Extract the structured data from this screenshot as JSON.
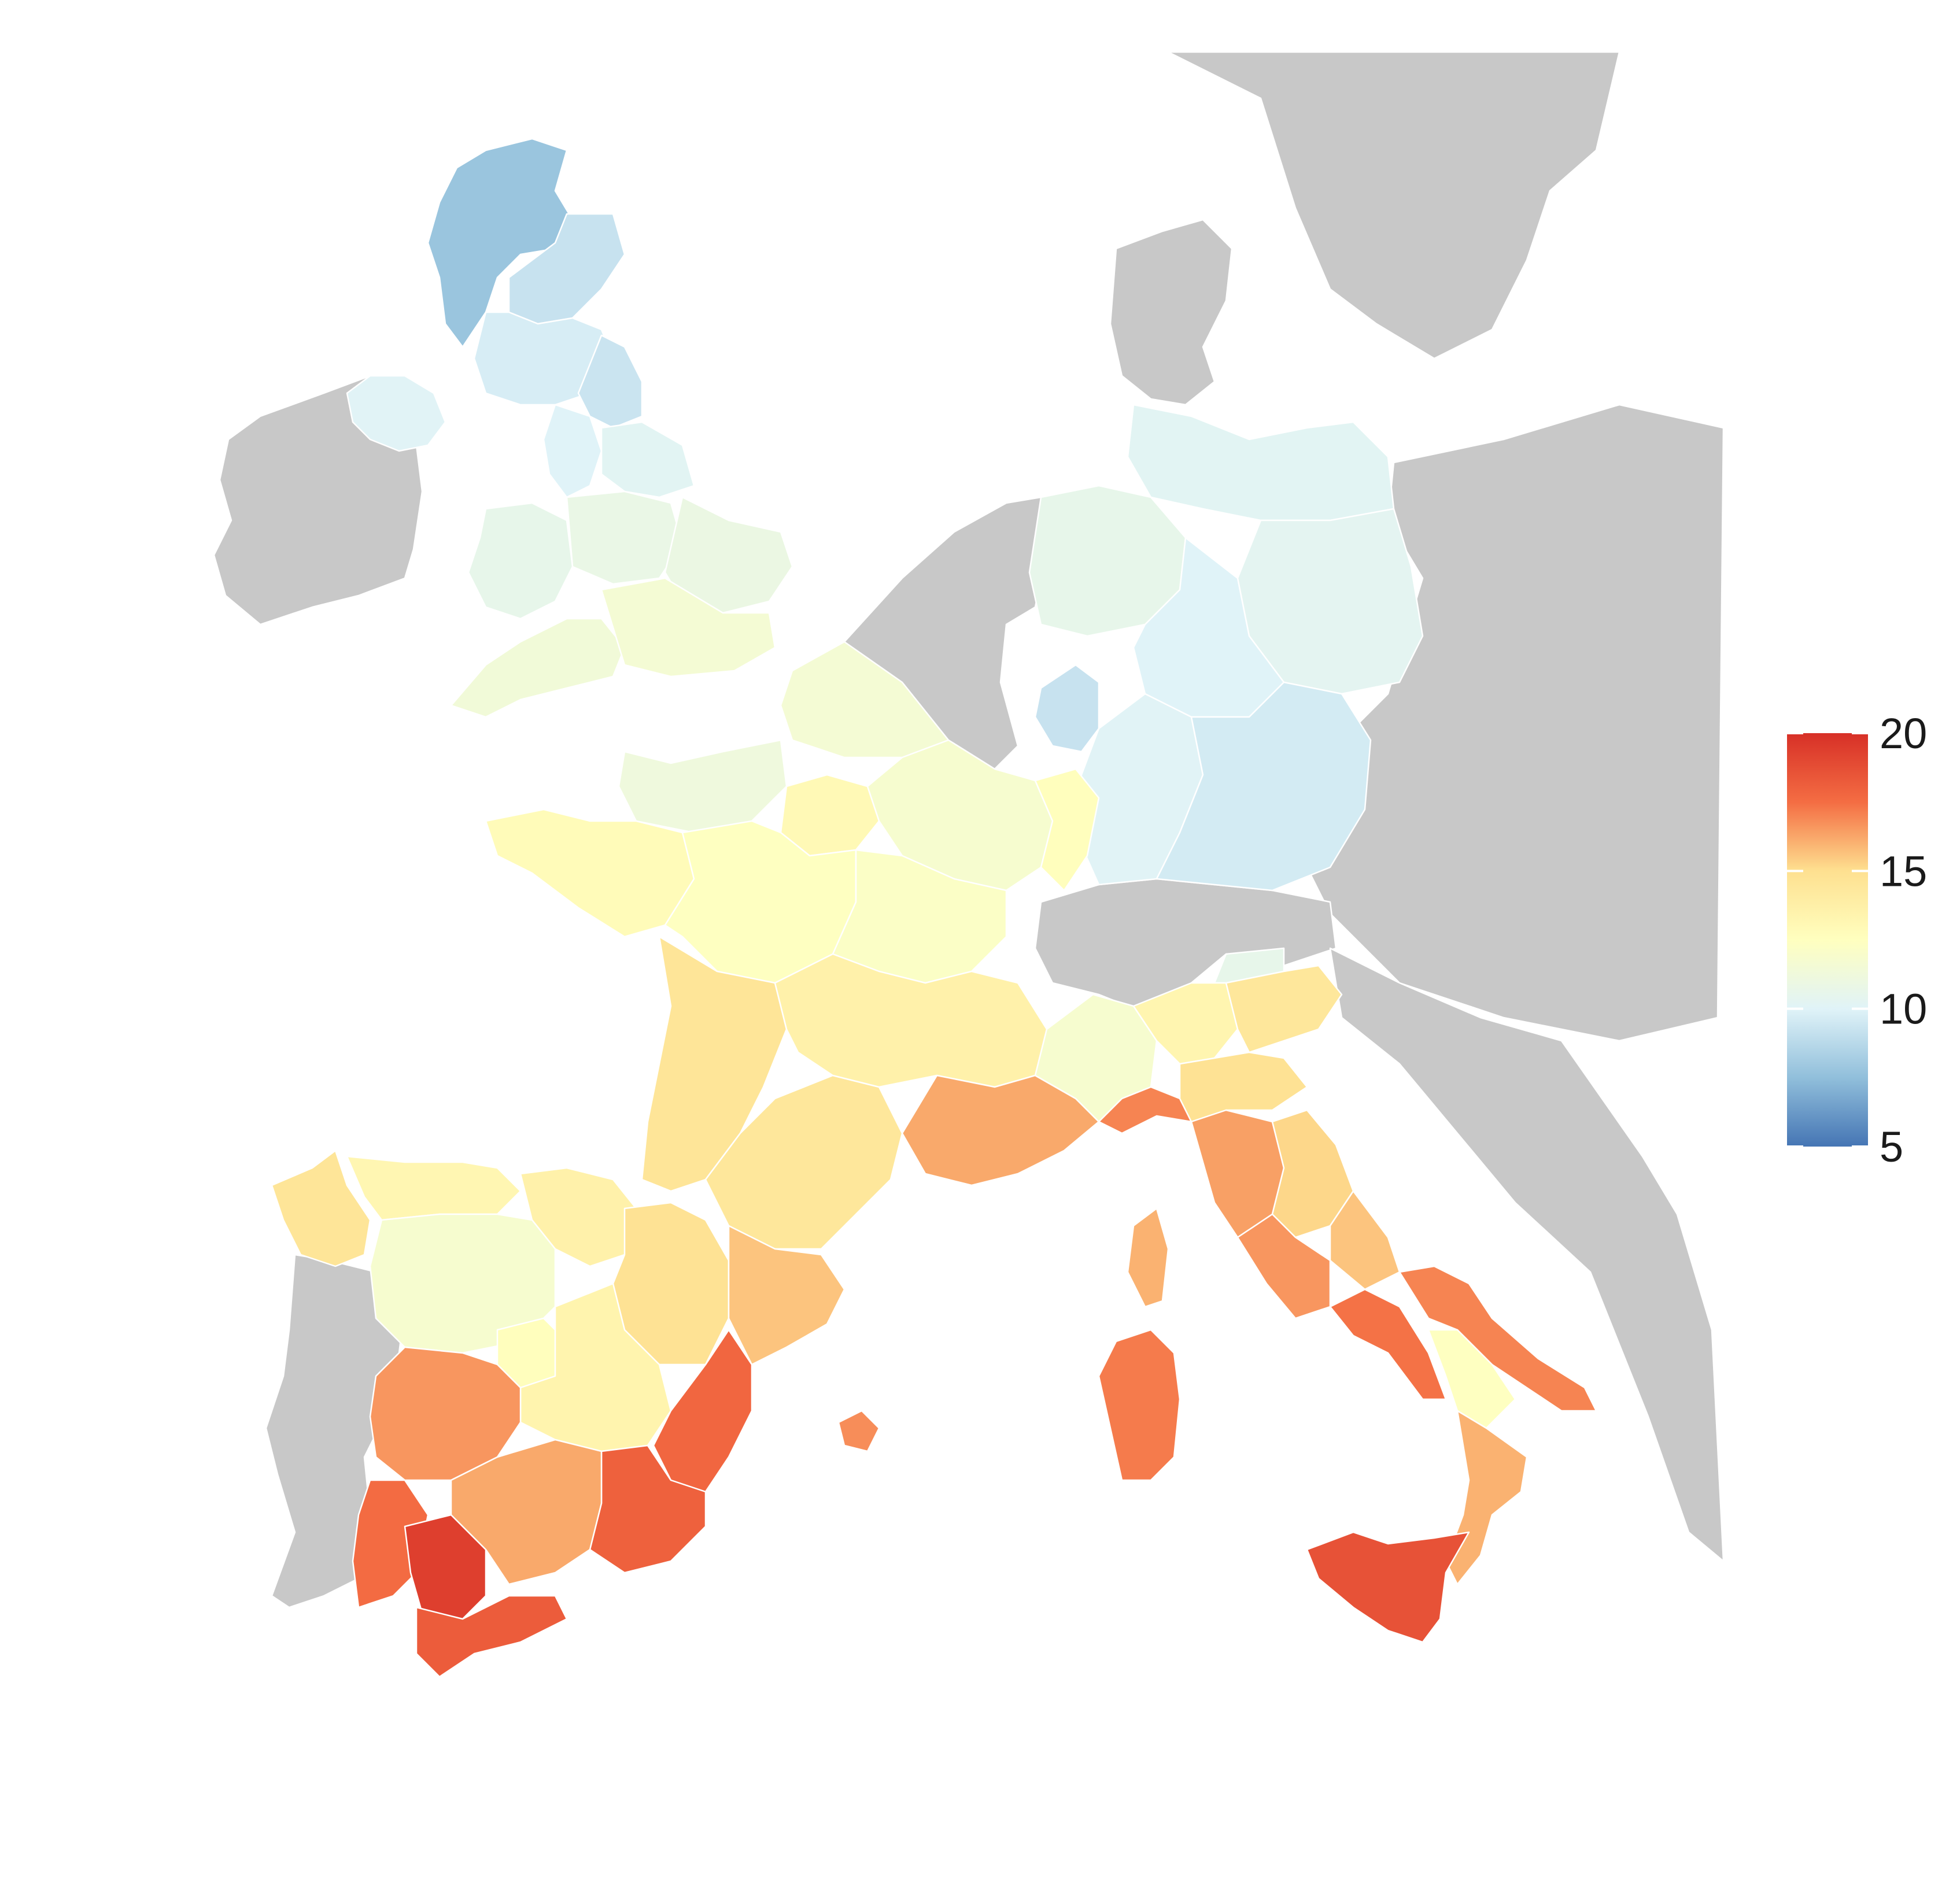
{
  "map": {
    "nodata_color": "#c8c8c8",
    "border_color": "#ffffff"
  },
  "legend": {
    "min": 5,
    "max": 20,
    "ticks": [
      {
        "value": 20,
        "label": "20"
      },
      {
        "value": 15,
        "label": "15"
      },
      {
        "value": 10,
        "label": "10"
      },
      {
        "value": 5,
        "label": "5"
      }
    ],
    "colors": [
      {
        "value": 5,
        "color": "#4575b4"
      },
      {
        "value": 7.5,
        "color": "#91bfdb"
      },
      {
        "value": 10,
        "color": "#e0f3f8"
      },
      {
        "value": 12.5,
        "color": "#ffffbf"
      },
      {
        "value": 15,
        "color": "#fee090"
      },
      {
        "value": 17.5,
        "color": "#f46d43"
      },
      {
        "value": 20,
        "color": "#d73027"
      }
    ]
  },
  "regions": [
    {
      "name": "north-scotland",
      "value": 7.8
    },
    {
      "name": "east-scotland",
      "value": 9.2
    },
    {
      "name": "south-scotland",
      "value": 9.7
    },
    {
      "name": "northern-ireland",
      "value": 10.1
    },
    {
      "name": "north-east-england",
      "value": 9.3
    },
    {
      "name": "north-west-england",
      "value": 10.0
    },
    {
      "name": "yorkshire",
      "value": 10.2
    },
    {
      "name": "wales",
      "value": 10.6
    },
    {
      "name": "midlands",
      "value": 10.8
    },
    {
      "name": "east-england",
      "value": 10.9
    },
    {
      "name": "south-west-england",
      "value": 11.4
    },
    {
      "name": "south-east-england",
      "value": 11.6
    },
    {
      "name": "north-germany",
      "value": 10.2
    },
    {
      "name": "west-germany",
      "value": 10.6
    },
    {
      "name": "east-germany",
      "value": 10.3
    },
    {
      "name": "central-germany",
      "value": 10.0
    },
    {
      "name": "south-germany",
      "value": 10.1
    },
    {
      "name": "bavaria",
      "value": 9.6
    },
    {
      "name": "luxembourg-rhineland",
      "value": 9.2
    },
    {
      "name": "south-tyrol",
      "value": 10.6
    },
    {
      "name": "nord-france",
      "value": 11.6
    },
    {
      "name": "normandy",
      "value": 11.2
    },
    {
      "name": "brittany",
      "value": 12.8
    },
    {
      "name": "ile-de-france",
      "value": 13.0
    },
    {
      "name": "grand-est",
      "value": 11.8
    },
    {
      "name": "centre-val-de-loire",
      "value": 12.4
    },
    {
      "name": "burgundy",
      "value": 12.2
    },
    {
      "name": "alsace",
      "value": 12.6
    },
    {
      "name": "nouvelle-aquitaine",
      "value": 14.6
    },
    {
      "name": "occitanie",
      "value": 14.4
    },
    {
      "name": "auvergne-rhone-alpes",
      "value": 13.6
    },
    {
      "name": "provence",
      "value": 16.2
    },
    {
      "name": "corsica",
      "value": 16.0
    },
    {
      "name": "piedmont",
      "value": 11.8
    },
    {
      "name": "lombardy",
      "value": 13.3
    },
    {
      "name": "veneto",
      "value": 14.4
    },
    {
      "name": "liguria",
      "value": 17.0
    },
    {
      "name": "emilia-romagna",
      "value": 14.8
    },
    {
      "name": "tuscany",
      "value": 16.4
    },
    {
      "name": "marche-umbria",
      "value": 15.2
    },
    {
      "name": "lazio",
      "value": 16.6
    },
    {
      "name": "abruzzo",
      "value": 15.6
    },
    {
      "name": "campania",
      "value": 17.4
    },
    {
      "name": "apulia",
      "value": 17.0
    },
    {
      "name": "basilicata",
      "value": 12.4
    },
    {
      "name": "calabria",
      "value": 16.0
    },
    {
      "name": "sicily",
      "value": 18.6
    },
    {
      "name": "sardinia",
      "value": 17.2
    },
    {
      "name": "galicia",
      "value": 14.6
    },
    {
      "name": "asturias-cantabria",
      "value": 13.2
    },
    {
      "name": "basque-navarre",
      "value": 13.6
    },
    {
      "name": "castilla-leon",
      "value": 11.8
    },
    {
      "name": "aragon",
      "value": 14.8
    },
    {
      "name": "catalonia",
      "value": 15.6
    },
    {
      "name": "madrid",
      "value": 12.6
    },
    {
      "name": "castilla-la-mancha",
      "value": 13.4
    },
    {
      "name": "extremadura",
      "value": 16.6
    },
    {
      "name": "valencia",
      "value": 17.8
    },
    {
      "name": "murcia",
      "value": 18.0
    },
    {
      "name": "andalusia-west",
      "value": 17.6
    },
    {
      "name": "andalusia-seville",
      "value": 19.4
    },
    {
      "name": "andalusia-east",
      "value": 16.2
    },
    {
      "name": "cadiz-malaga",
      "value": 18.2
    },
    {
      "name": "balearics",
      "value": 16.8
    }
  ]
}
